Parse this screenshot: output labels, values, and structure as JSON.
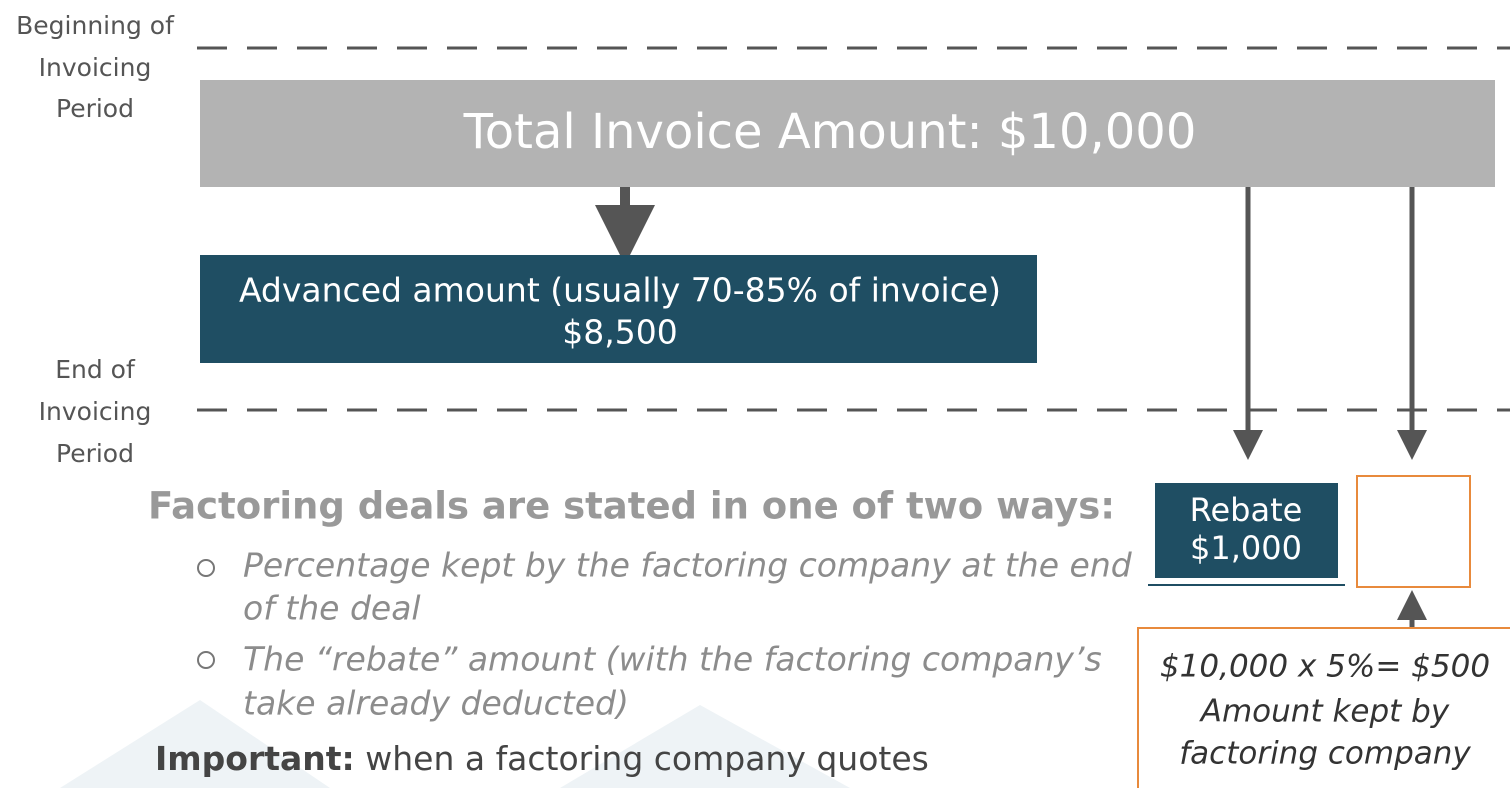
{
  "timeline": {
    "start_label": [
      "Beginning of",
      "Invoicing",
      "Period"
    ],
    "end_label": [
      "End of",
      "Invoicing",
      "Period"
    ]
  },
  "total_box": {
    "text": "Total Invoice Amount: $10,000"
  },
  "advance_box": {
    "lines": [
      "Advanced amount (usually 70-85% of invoice)",
      "$8,500"
    ]
  },
  "rebate_box": {
    "lines": [
      "Rebate",
      "$1,000"
    ]
  },
  "fee_note": {
    "lines": [
      "$10,000 x 5%= $500",
      "Amount kept by",
      "factoring company"
    ]
  },
  "notes": {
    "heading": "Factoring deals are stated in one of two ways:",
    "bullets": [
      [
        "Percentage kept by the factoring company at the end",
        "of the deal"
      ],
      [
        "The “rebate” amount (with the factoring company’s",
        "take already deducted)"
      ]
    ],
    "important_label": "Important:",
    "important_text": " when a factoring company quotes"
  }
}
